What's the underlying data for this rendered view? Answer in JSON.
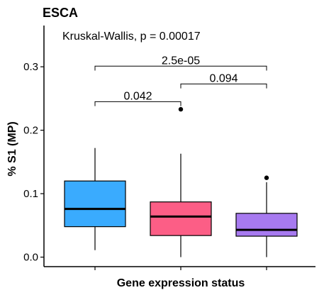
{
  "chart_data": {
    "type": "box",
    "title": "ESCA",
    "xlabel": "Gene expression status",
    "ylabel": "% S1 (MP)",
    "ylim": [
      -0.015,
      0.365
    ],
    "yticks": [
      "0.0",
      "0.1",
      "0.2",
      "0.3"
    ],
    "grid": false,
    "legend": "none",
    "test_annotation": "Kruskal-Wallis, p = 0.00017",
    "boxes": [
      {
        "color": "#3AABFE",
        "whisker_low": 0.011,
        "q1": 0.048,
        "median": 0.076,
        "q3": 0.12,
        "whisker_high": 0.172,
        "outliers": []
      },
      {
        "color": "#FC5E86",
        "whisker_low": 0.0,
        "q1": 0.034,
        "median": 0.064,
        "q3": 0.087,
        "whisker_high": 0.163,
        "outliers": [
          0.233
        ]
      },
      {
        "color": "#A77AF0",
        "whisker_low": 0.0,
        "q1": 0.033,
        "median": 0.043,
        "q3": 0.069,
        "whisker_high": 0.118,
        "outliers": [
          0.125
        ]
      }
    ],
    "comparisons": [
      {
        "from": 0,
        "to": 1,
        "label": "0.042",
        "y": 0.245,
        "drop": 0.007
      },
      {
        "from": 1,
        "to": 2,
        "label": "0.094",
        "y": 0.273,
        "drop": 0.007
      },
      {
        "from": 0,
        "to": 2,
        "label": "2.5e-05",
        "y": 0.301,
        "drop": 0.007
      }
    ]
  }
}
